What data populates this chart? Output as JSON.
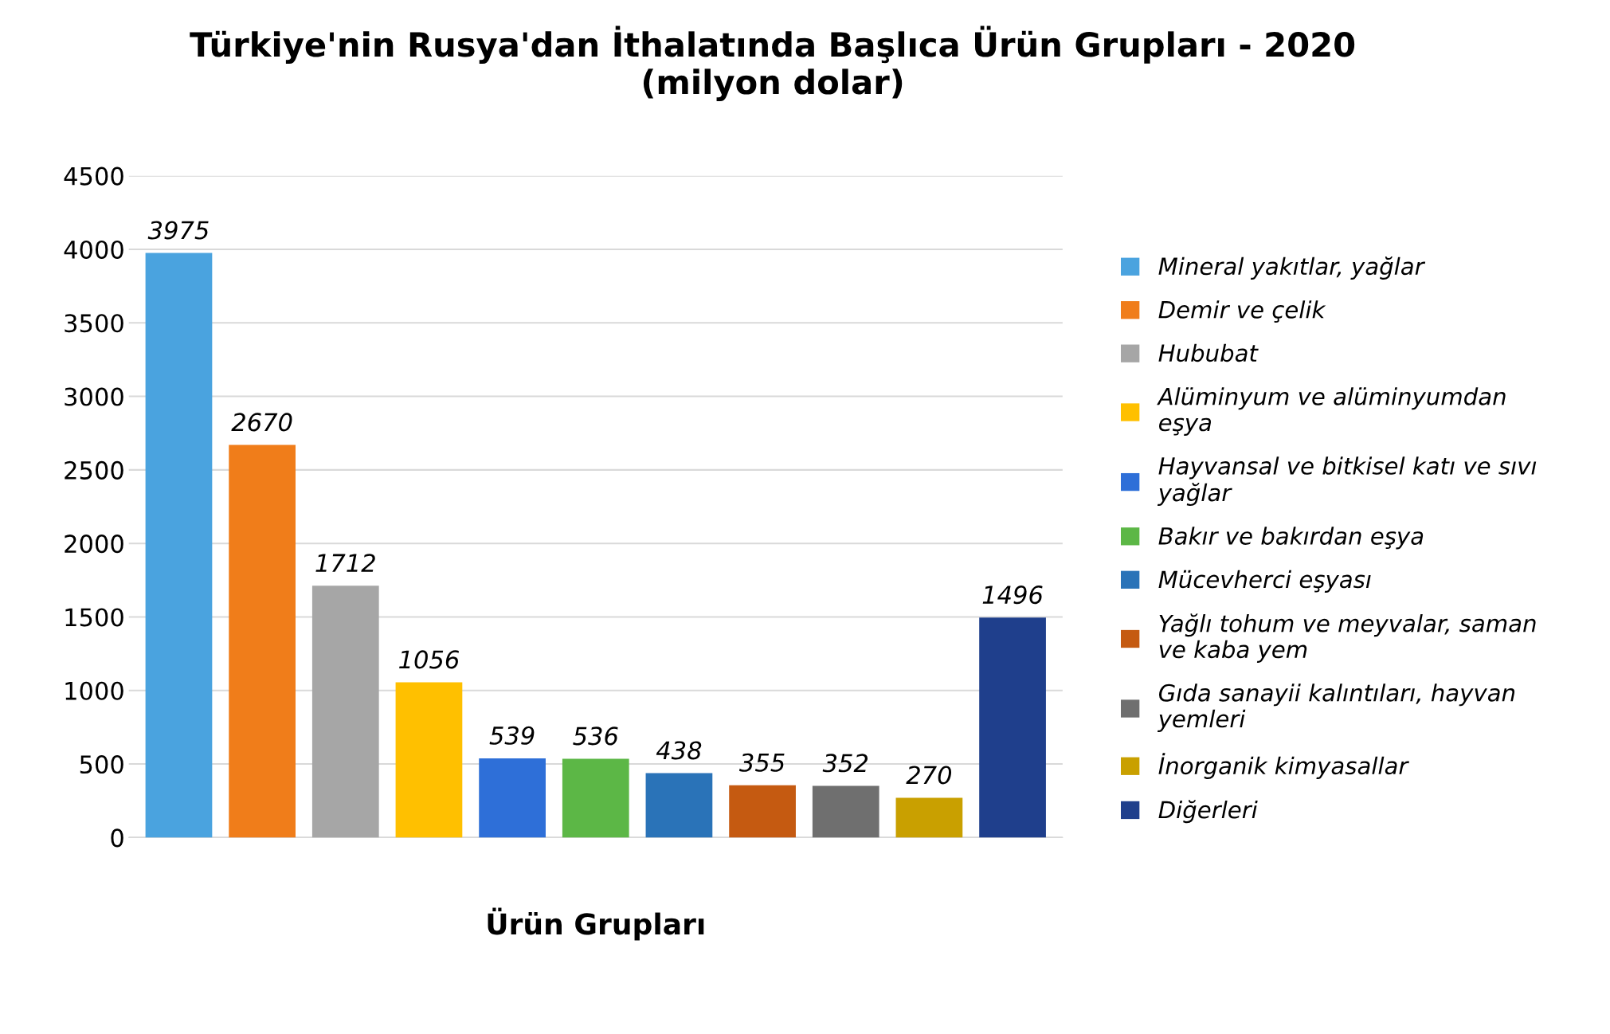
{
  "chart_data": {
    "type": "bar",
    "title": "Türkiye'nin Rusya'dan İthalatında Başlıca Ürün Grupları - 2020\n(milyon dolar)",
    "xlabel": "Ürün Grupları",
    "categories": [
      null,
      null,
      null,
      null,
      null,
      null,
      null,
      null,
      null,
      null,
      null
    ],
    "series": [
      {
        "name": "Mineral yakıtlar, yağlar",
        "color": "#4aa3df",
        "values": [
          3975,
          null,
          null,
          null,
          null,
          null,
          null,
          null,
          null,
          null,
          null
        ]
      },
      {
        "name": "Demir ve çelik",
        "color": "#f07d1a",
        "values": [
          null,
          2670,
          null,
          null,
          null,
          null,
          null,
          null,
          null,
          null,
          null
        ]
      },
      {
        "name": "Hububat",
        "color": "#a6a6a6",
        "values": [
          null,
          null,
          1712,
          null,
          null,
          null,
          null,
          null,
          null,
          null,
          null
        ]
      },
      {
        "name": "Alüminyum ve alüminyumdan\neşya",
        "color": "#ffc000",
        "values": [
          null,
          null,
          null,
          1056,
          null,
          null,
          null,
          null,
          null,
          null,
          null
        ]
      },
      {
        "name": "Hayvansal ve bitkisel katı ve sıvı\nyağlar",
        "color": "#2e6fd8",
        "values": [
          null,
          null,
          null,
          null,
          539,
          null,
          null,
          null,
          null,
          null,
          null
        ]
      },
      {
        "name": "Bakır ve bakırdan eşya",
        "color": "#5cb746",
        "values": [
          null,
          null,
          null,
          null,
          null,
          536,
          null,
          null,
          null,
          null,
          null
        ]
      },
      {
        "name": "Mücevherci eşyası",
        "color": "#2a73b8",
        "values": [
          null,
          null,
          null,
          null,
          null,
          null,
          438,
          null,
          null,
          null,
          null
        ]
      },
      {
        "name": "Yağlı tohum ve meyvalar, saman\nve kaba yem",
        "color": "#c55a11",
        "values": [
          null,
          null,
          null,
          null,
          null,
          null,
          null,
          355,
          null,
          null,
          null
        ]
      },
      {
        "name": "Gıda sanayii kalıntıları, hayvan\nyemleri",
        "color": "#6f6f6f",
        "values": [
          null,
          null,
          null,
          null,
          null,
          null,
          null,
          null,
          352,
          null,
          null
        ]
      },
      {
        "name": "İnorganik kimyasallar",
        "color": "#c9a000",
        "values": [
          null,
          null,
          null,
          null,
          null,
          null,
          null,
          null,
          null,
          270,
          null
        ]
      },
      {
        "name": "Diğerleri",
        "color": "#1f3f8c",
        "values": [
          null,
          null,
          null,
          null,
          null,
          null,
          null,
          null,
          null,
          null,
          1496
        ]
      }
    ],
    "ylim": [
      0,
      4500
    ],
    "yticks": [
      0,
      500,
      1000,
      1500,
      2000,
      2500,
      3000,
      3500,
      4000,
      4500
    ],
    "grid": "y",
    "legend": "right",
    "data_labels": true
  }
}
